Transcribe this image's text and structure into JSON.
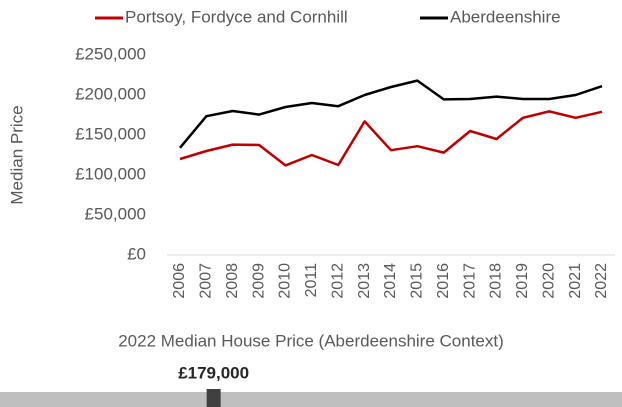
{
  "chart_data": [
    {
      "type": "line",
      "ylabel": "Median Price",
      "categories": [
        "2006",
        "2007",
        "2008",
        "2009",
        "2010",
        "2011",
        "2012",
        "2013",
        "2014",
        "2015",
        "2016",
        "2017",
        "2018",
        "2019",
        "2020",
        "2021",
        "2022"
      ],
      "series": [
        {
          "name": "Portsoy, Fordyce and Cornhill",
          "color": "#c00000",
          "values": [
            120000,
            130000,
            138000,
            137500,
            112000,
            125000,
            112500,
            167000,
            131000,
            136000,
            128000,
            155000,
            145000,
            171500,
            179500,
            171500,
            179000
          ]
        },
        {
          "name": "Aberdeenshire",
          "color": "#000000",
          "values": [
            134000,
            173500,
            180000,
            175500,
            185000,
            190000,
            186000,
            200000,
            210000,
            218000,
            194500,
            195000,
            198000,
            195000,
            195000,
            200000,
            211000
          ]
        }
      ],
      "ylim": [
        0,
        250000
      ],
      "yticks": [
        {
          "value": 0,
          "label": "£0"
        },
        {
          "value": 50000,
          "label": "£50,000"
        },
        {
          "value": 100000,
          "label": "£100,000"
        },
        {
          "value": 150000,
          "label": "£150,000"
        },
        {
          "value": 200000,
          "label": "£200,000"
        },
        {
          "value": 250000,
          "label": "£250,000"
        }
      ],
      "legend": "top"
    },
    {
      "type": "range",
      "title": "2022 Median House Price (Aberdeenshire Context)",
      "value": 179000,
      "value_label": "£179,000",
      "xlim": [
        100000,
        330000
      ]
    }
  ]
}
